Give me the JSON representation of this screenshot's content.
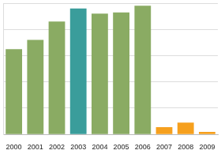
{
  "chart_data": {
    "type": "bar",
    "categories": [
      "2000",
      "2001",
      "2002",
      "2003",
      "2004",
      "2005",
      "2006",
      "2007",
      "2008",
      "2009"
    ],
    "values": [
      65,
      72,
      86,
      96,
      92,
      93,
      98,
      5.5,
      9,
      2
    ],
    "colors": [
      "#8aab63",
      "#8aab63",
      "#8aab63",
      "#3a9d9b",
      "#8aab63",
      "#8aab63",
      "#8aab63",
      "#f6a01e",
      "#f6a01e",
      "#f6a01e"
    ],
    "ylim": [
      0,
      100
    ],
    "yticks": [
      0,
      20,
      40,
      60,
      80,
      100
    ],
    "grid": true,
    "tick_labels": "x"
  }
}
